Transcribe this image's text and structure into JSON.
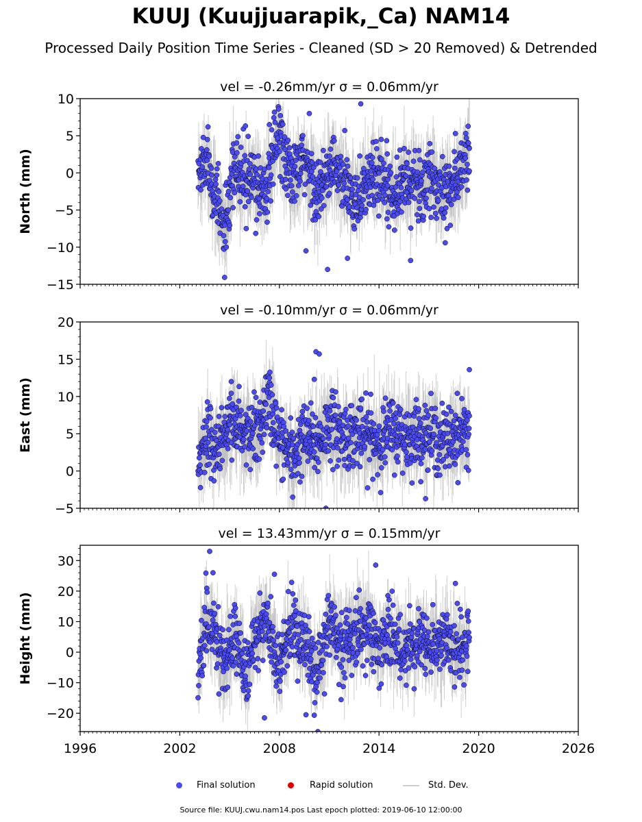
{
  "title": "KUUJ (Kuujjuarapik,_Ca) NAM14",
  "subtitle": "Processed Daily Position Time Series - Cleaned (SD > 20 Removed) & Detrended",
  "legend": {
    "final": "Final solution",
    "rapid": "Rapid solution",
    "std": "Std. Dev."
  },
  "footer": "Source file: KUUJ.cwu.nam14.pos  Last epoch plotted: 2019-06-10 12:00:00",
  "colors": {
    "final_fill": "#4b4bf5",
    "final_edge": "#000000",
    "rapid": "#e00000",
    "std_dev": "#bdbdbd"
  },
  "chart_data": [
    {
      "type": "scatter",
      "panel": "north",
      "title": "vel = -0.26mm/yr   σ = 0.06mm/yr",
      "ylabel": "North (mm)",
      "xlim": [
        1996,
        2026
      ],
      "ylim": [
        -15,
        10
      ],
      "yticks": [
        -15,
        -10,
        -5,
        0,
        5,
        10
      ],
      "xticks": [
        1996,
        2002,
        2008,
        2014,
        2020,
        2026
      ],
      "x_range": [
        2003.1,
        2019.44
      ],
      "series": [
        {
          "name": "Final solution",
          "x": [
            2003.1,
            2003.6,
            2004.2,
            2004.7,
            2005.3,
            2006.5,
            2007.3,
            2008.0,
            2008.7,
            2009.5,
            2010.4,
            2011.2,
            2012.0,
            2012.6,
            2013.3,
            2014.0,
            2014.8,
            2015.6,
            2016.4,
            2017.2,
            2018.0,
            2018.7,
            2019.44
          ],
          "y": [
            -0.5,
            2.5,
            -3.5,
            -8.5,
            0.5,
            -1.5,
            -2.0,
            6.0,
            -1.0,
            1.5,
            -3.0,
            1.0,
            -2.0,
            -3.5,
            -1.5,
            0.0,
            -2.5,
            -1.0,
            -2.0,
            -1.5,
            -2.0,
            -1.0,
            3.2
          ]
        }
      ],
      "outliers": [
        {
          "x": 2004.8,
          "y": -10.0
        },
        {
          "x": 2006.0,
          "y": -7.5
        },
        {
          "x": 2007.4,
          "y": 6.5
        },
        {
          "x": 2009.6,
          "y": -10.5
        },
        {
          "x": 2009.8,
          "y": 8.0
        },
        {
          "x": 2010.9,
          "y": -13.0
        },
        {
          "x": 2012.1,
          "y": -11.5
        },
        {
          "x": 2012.9,
          "y": 9.3
        },
        {
          "x": 2015.9,
          "y": -11.8
        },
        {
          "x": 2018.6,
          "y": 5.3
        },
        {
          "x": 2019.44,
          "y": 3.3
        }
      ]
    },
    {
      "type": "scatter",
      "panel": "east",
      "title": "vel = -0.10mm/yr   σ = 0.06mm/yr",
      "ylabel": "East (mm)",
      "xlim": [
        1996,
        2026
      ],
      "ylim": [
        -5,
        20
      ],
      "yticks": [
        -5,
        0,
        5,
        10,
        15,
        20
      ],
      "xticks": [
        1996,
        2002,
        2008,
        2014,
        2020,
        2026
      ],
      "x_range": [
        2003.1,
        2019.44
      ],
      "series": [
        {
          "name": "Final solution",
          "x": [
            2003.1,
            2003.6,
            2004.2,
            2004.7,
            2005.3,
            2006.0,
            2006.8,
            2007.3,
            2008.0,
            2008.8,
            2009.5,
            2010.3,
            2011.0,
            2011.8,
            2012.5,
            2013.3,
            2014.0,
            2014.8,
            2015.6,
            2016.4,
            2017.2,
            2018.0,
            2018.7,
            2019.44
          ],
          "y": [
            1.0,
            4.5,
            3.0,
            5.0,
            7.5,
            4.5,
            5.0,
            10.0,
            4.0,
            2.0,
            4.5,
            3.5,
            6.5,
            5.0,
            5.0,
            4.5,
            4.0,
            5.5,
            4.5,
            5.0,
            4.5,
            4.0,
            5.0,
            5.5
          ]
        }
      ],
      "outliers": [
        {
          "x": 2005.1,
          "y": 12.0
        },
        {
          "x": 2007.4,
          "y": 12.5
        },
        {
          "x": 2008.8,
          "y": -3.5
        },
        {
          "x": 2010.1,
          "y": 12.3
        },
        {
          "x": 2010.2,
          "y": 16.0
        },
        {
          "x": 2010.4,
          "y": 15.7
        },
        {
          "x": 2010.8,
          "y": -5.0
        },
        {
          "x": 2013.5,
          "y": 10.3
        },
        {
          "x": 2019.44,
          "y": 13.6
        }
      ]
    },
    {
      "type": "scatter",
      "panel": "height",
      "title": "vel = 13.43mm/yr   σ = 0.15mm/yr",
      "ylabel": "Height (mm)",
      "xlim": [
        1996,
        2026
      ],
      "ylim": [
        -26,
        35
      ],
      "yticks": [
        -20,
        -10,
        0,
        10,
        20,
        30
      ],
      "xticks": [
        1996,
        2002,
        2008,
        2014,
        2020,
        2026
      ],
      "xtick_labels": [
        "1996",
        "2002",
        "2008",
        "2014",
        "2020",
        "2026"
      ],
      "x_range": [
        2003.1,
        2019.44
      ],
      "series": [
        {
          "name": "Final solution",
          "x": [
            2003.1,
            2003.6,
            2004.2,
            2004.7,
            2005.3,
            2006.0,
            2006.6,
            2007.3,
            2008.0,
            2008.7,
            2009.5,
            2010.3,
            2011.0,
            2011.8,
            2012.5,
            2013.3,
            2014.0,
            2014.8,
            2015.6,
            2016.4,
            2017.2,
            2018.0,
            2018.7,
            2019.44
          ],
          "y": [
            -5.0,
            10.0,
            5.0,
            -5.0,
            8.0,
            -10.0,
            5.0,
            10.0,
            -5.0,
            8.0,
            3.0,
            -8.0,
            10.0,
            0.0,
            5.0,
            8.0,
            2.0,
            5.0,
            0.0,
            6.0,
            2.0,
            5.0,
            0.0,
            3.0
          ]
        }
      ],
      "outliers": [
        {
          "x": 2003.8,
          "y": 33.0
        },
        {
          "x": 2004.0,
          "y": 26.0
        },
        {
          "x": 2007.7,
          "y": 25.5
        },
        {
          "x": 2007.1,
          "y": -21.5
        },
        {
          "x": 2009.6,
          "y": -20.5
        },
        {
          "x": 2013.8,
          "y": 28.5
        },
        {
          "x": 2018.6,
          "y": 22.5
        }
      ]
    }
  ]
}
